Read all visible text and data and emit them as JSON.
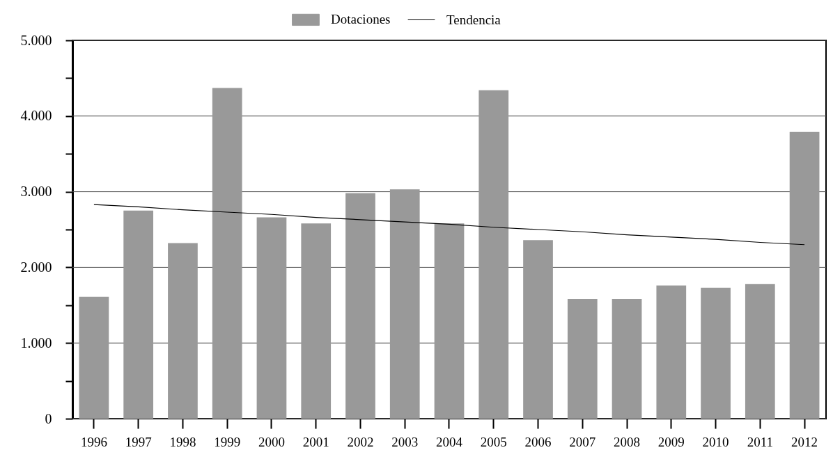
{
  "chart_data": {
    "type": "bar",
    "categories": [
      "1996",
      "1997",
      "1998",
      "1999",
      "2000",
      "2001",
      "2002",
      "2003",
      "2004",
      "2005",
      "2006",
      "2007",
      "2008",
      "2009",
      "2010",
      "2011",
      "2012"
    ],
    "series": [
      {
        "name": "Dotaciones",
        "color": "#999999",
        "values": [
          1610,
          2750,
          2320,
          4370,
          2660,
          2580,
          2980,
          3030,
          2580,
          4340,
          2360,
          1580,
          1580,
          1760,
          1730,
          1780,
          3790
        ]
      },
      {
        "name": "Tendencia",
        "type": "line",
        "color": "#000000",
        "values": [
          2830,
          2800,
          2760,
          2730,
          2700,
          2660,
          2630,
          2600,
          2570,
          2530,
          2500,
          2470,
          2430,
          2400,
          2370,
          2330,
          2300
        ]
      }
    ],
    "ylim": [
      0,
      5000
    ],
    "yticks": [
      0,
      {
        "value": 500,
        "label": null
      },
      {
        "value": 1000,
        "label": "1.000"
      },
      {
        "value": 1500,
        "label": null
      },
      {
        "value": 2000,
        "label": "2.000"
      },
      {
        "value": 2500,
        "label": null
      },
      {
        "value": 3000,
        "label": "3.000"
      },
      {
        "value": 3500,
        "label": null
      },
      {
        "value": 4000,
        "label": "4.000"
      },
      {
        "value": 4500,
        "label": null
      },
      {
        "value": 5000,
        "label": "5.000"
      }
    ],
    "grid": "y",
    "legend": "top",
    "line_style": "solid",
    "marker": "none"
  }
}
